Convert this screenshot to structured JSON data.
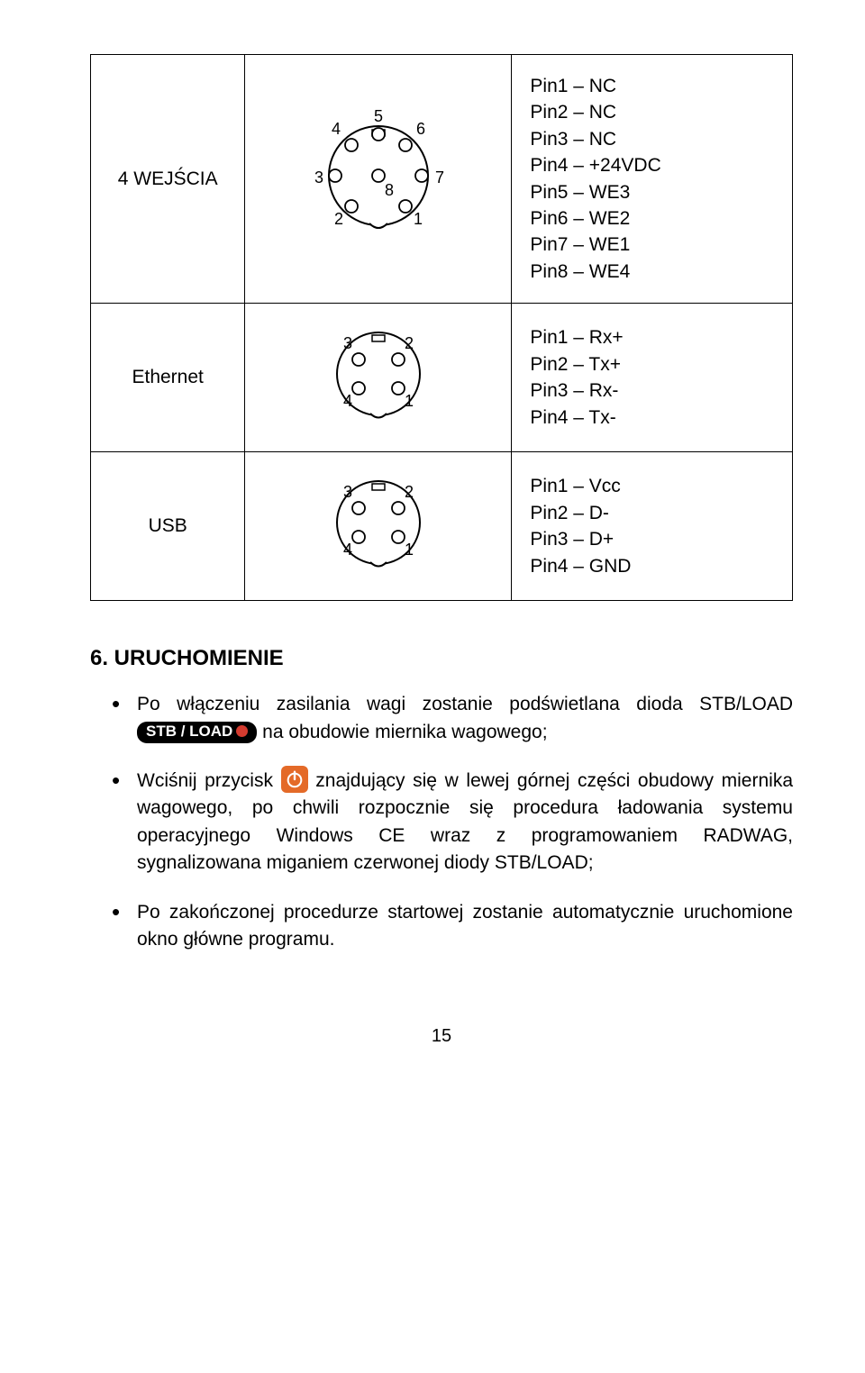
{
  "colors": {
    "text": "#000000",
    "bg": "#ffffff",
    "led": "#d43b2f",
    "powerBtn": "#e46a28",
    "powerGlyph": "#ffffff"
  },
  "table": {
    "rows": [
      {
        "label": "4 WEJŚCIA",
        "connector": {
          "type": "din8",
          "labels": [
            "1",
            "2",
            "3",
            "4",
            "5",
            "6",
            "7",
            "8"
          ]
        },
        "pins": [
          "Pin1 – NC",
          "Pin2 – NC",
          "Pin3 – NC",
          "Pin4 –  +24VDC",
          "Pin5 – WE3",
          "Pin6 – WE2",
          "Pin7 – WE1",
          "Pin8 – WE4"
        ]
      },
      {
        "label": "Ethernet",
        "connector": {
          "type": "din4",
          "labels": [
            "1",
            "2",
            "3",
            "4"
          ]
        },
        "pins": [
          "Pin1 – Rx+",
          "Pin2 – Tx+",
          "Pin3 – Rx-",
          "Pin4 – Tx-"
        ]
      },
      {
        "label": "USB",
        "connector": {
          "type": "din4",
          "labels": [
            "1",
            "2",
            "3",
            "4"
          ]
        },
        "pins": [
          "Pin1 – Vcc",
          "Pin2 – D-",
          "Pin3 – D+",
          "Pin4 – GND"
        ]
      }
    ]
  },
  "section": {
    "title": "6. URUCHOMIENIE",
    "stbBadge": "STB / LOAD",
    "bullets": [
      {
        "pre": "Po włączeniu zasilania wagi zostanie podświetlana dioda STB/LOAD ",
        "hasStb": true,
        "post": " na obudowie miernika wagowego;"
      },
      {
        "pre": "Wciśnij przycisk ",
        "hasPower": true,
        "post": " znajdujący się w lewej górnej części obudowy miernika wagowego, po chwili rozpocznie się procedura ładowania systemu operacyjnego Windows CE wraz z programowaniem RADWAG, sygnalizowana miganiem czerwonej diody STB/LOAD;"
      },
      {
        "pre": "Po zakończonej procedurze startowej zostanie automatycznie uruchomione okno główne programu.",
        "hasStb": false,
        "post": ""
      }
    ]
  },
  "pageNumber": "15"
}
